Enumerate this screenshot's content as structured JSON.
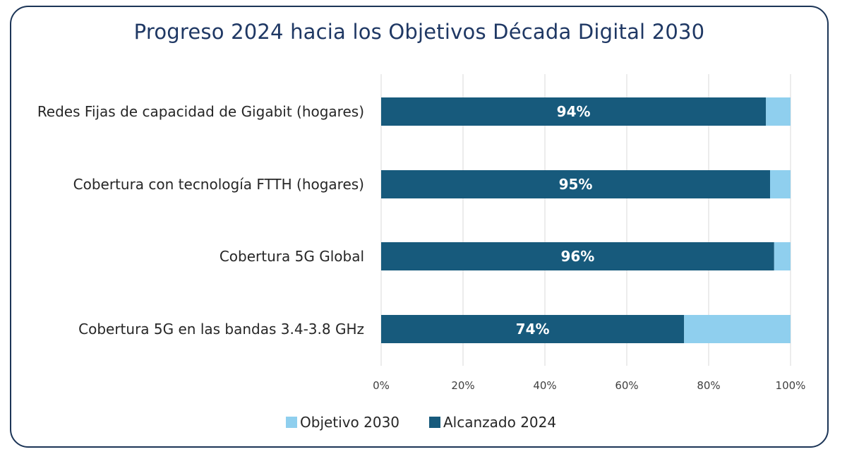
{
  "chart_data": {
    "type": "bar",
    "orientation": "horizontal",
    "stacked": true,
    "title": "Progreso 2024 hacia los Objetivos Década Digital 2030",
    "categories": [
      "Redes Fijas de capacidad de Gigabit (hogares)",
      "Cobertura con tecnología FTTH (hogares)",
      "Cobertura 5G Global",
      "Cobertura 5G en las bandas 3.4-3.8 GHz"
    ],
    "series": [
      {
        "name": "Alcanzado 2024",
        "values": [
          94,
          95,
          96,
          74
        ],
        "labels": [
          "94%",
          "95%",
          "96%",
          "74%"
        ],
        "color": "#175a7c"
      },
      {
        "name": "Objetivo 2030",
        "values": [
          6,
          5,
          4,
          26
        ],
        "color": "#8fcfee"
      }
    ],
    "xlim": [
      0,
      100
    ],
    "xticks": [
      "0%",
      "20%",
      "40%",
      "60%",
      "80%",
      "100%"
    ],
    "grid": true,
    "legend": {
      "placement": "bottom",
      "entries": [
        {
          "name": "Objetivo 2030",
          "color": "#8fcfee"
        },
        {
          "name": "Alcanzado 2024",
          "color": "#175a7c"
        }
      ]
    }
  }
}
